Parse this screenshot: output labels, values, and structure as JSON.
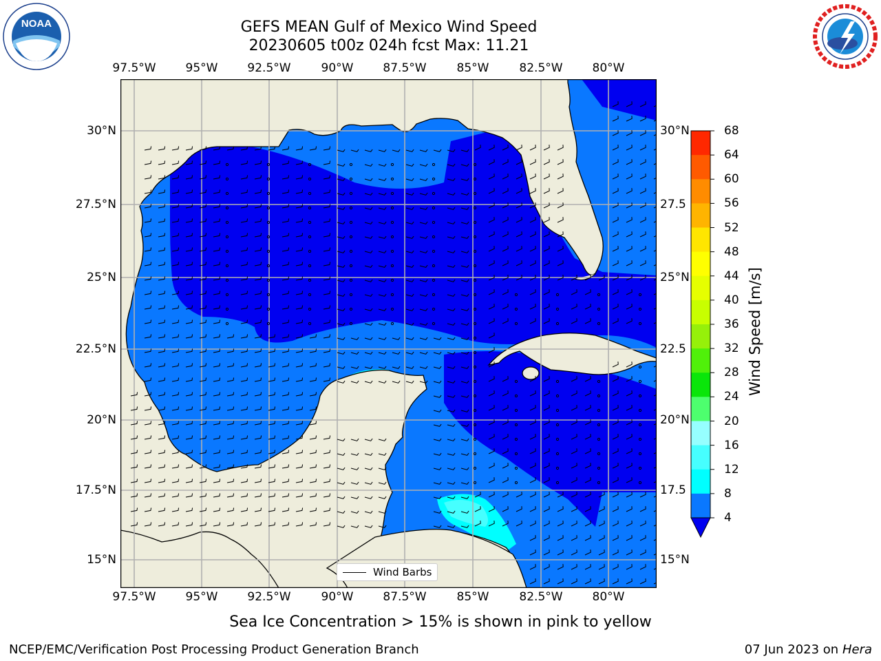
{
  "title": {
    "line1": "GEFS MEAN Gulf of Mexico Wind Speed",
    "line2": "20230605 t00z 024h fcst   Max: 11.21"
  },
  "map": {
    "lon_ticks": [
      "97.5°W",
      "95°W",
      "92.5°W",
      "90°W",
      "87.5°W",
      "85°W",
      "82.5°W",
      "80°W"
    ],
    "lat_ticks": [
      "30°N",
      "27.5°N",
      "25°N",
      "22.5°N",
      "20°N",
      "17.5°N",
      "15°N"
    ],
    "right_lat_ticks": [
      "30°N",
      "27.5",
      "25°N",
      "22.5",
      "20°N",
      "17.5",
      "15°N"
    ],
    "legend_label": "Wind Barbs",
    "colors": {
      "land": "#eeeddc",
      "speed_0_4": "#0000f0",
      "speed_4_8": "#0a78ff",
      "speed_8_12": "#00ffff",
      "speed_12_16": "#46ffff",
      "gridline": "#b0b0b0"
    }
  },
  "colorbar": {
    "label": "Wind Speed [m/s]",
    "ticks": [
      "4",
      "8",
      "12",
      "16",
      "20",
      "24",
      "28",
      "32",
      "36",
      "40",
      "44",
      "48",
      "52",
      "56",
      "60",
      "64",
      "68"
    ],
    "colors": [
      "#0a78ff",
      "#00ffff",
      "#46ffff",
      "#96ffff",
      "#4dff6e",
      "#0ae60a",
      "#50f00a",
      "#96f00a",
      "#c8ff00",
      "#e6ff00",
      "#ffff00",
      "#ffe600",
      "#ffb400",
      "#ff8c00",
      "#ff5a00",
      "#ff2800",
      "#ff0000"
    ],
    "under_color": "#0000f0"
  },
  "caption": "Sea Ice Concentration > 15% is shown in pink to yellow",
  "footer": {
    "left": "NCEP/EMC/Verification Post Processing Product Generation Branch",
    "date": "07 Jun 2023 on",
    "host": "Hera"
  },
  "logos": {
    "noaa": "NOAA",
    "nws": "NATIONAL WEATHER SERVICE"
  }
}
